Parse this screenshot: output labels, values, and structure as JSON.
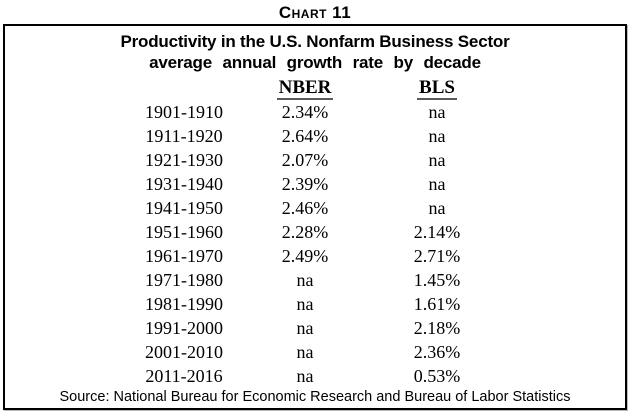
{
  "figure_label": "Chart 11",
  "chart_data": {
    "type": "table",
    "title": "Productivity in the U.S. Nonfarm Business Sector",
    "subtitle": "average annual growth rate by decade",
    "columns": [
      "NBER",
      "BLS"
    ],
    "na_marker": "na",
    "rows": [
      {
        "decade": "1901-1910",
        "nber": "2.34%",
        "bls": "na"
      },
      {
        "decade": "1911-1920",
        "nber": "2.64%",
        "bls": "na"
      },
      {
        "decade": "1921-1930",
        "nber": "2.07%",
        "bls": "na"
      },
      {
        "decade": "1931-1940",
        "nber": "2.39%",
        "bls": "na"
      },
      {
        "decade": "1941-1950",
        "nber": "2.46%",
        "bls": "na"
      },
      {
        "decade": "1951-1960",
        "nber": "2.28%",
        "bls": "2.14%"
      },
      {
        "decade": "1961-1970",
        "nber": "2.49%",
        "bls": "2.71%"
      },
      {
        "decade": "1971-1980",
        "nber": "na",
        "bls": "1.45%"
      },
      {
        "decade": "1981-1990",
        "nber": "na",
        "bls": "1.61%"
      },
      {
        "decade": "1991-2000",
        "nber": "na",
        "bls": "2.18%"
      },
      {
        "decade": "2001-2010",
        "nber": "na",
        "bls": "2.36%"
      },
      {
        "decade": "2011-2016",
        "nber": "na",
        "bls": "0.53%"
      }
    ],
    "series": [
      {
        "name": "NBER",
        "values": [
          2.34,
          2.64,
          2.07,
          2.39,
          2.46,
          2.28,
          2.49,
          null,
          null,
          null,
          null,
          null
        ]
      },
      {
        "name": "BLS",
        "values": [
          null,
          null,
          null,
          null,
          null,
          2.14,
          2.71,
          1.45,
          1.61,
          2.18,
          2.36,
          0.53
        ]
      }
    ],
    "categories": [
      "1901-1910",
      "1911-1920",
      "1921-1930",
      "1931-1940",
      "1941-1950",
      "1951-1960",
      "1961-1970",
      "1971-1980",
      "1981-1990",
      "1991-2000",
      "2001-2010",
      "2011-2016"
    ],
    "source": "Source: National Bureau for Economic Research and Bureau of Labor Statistics"
  }
}
